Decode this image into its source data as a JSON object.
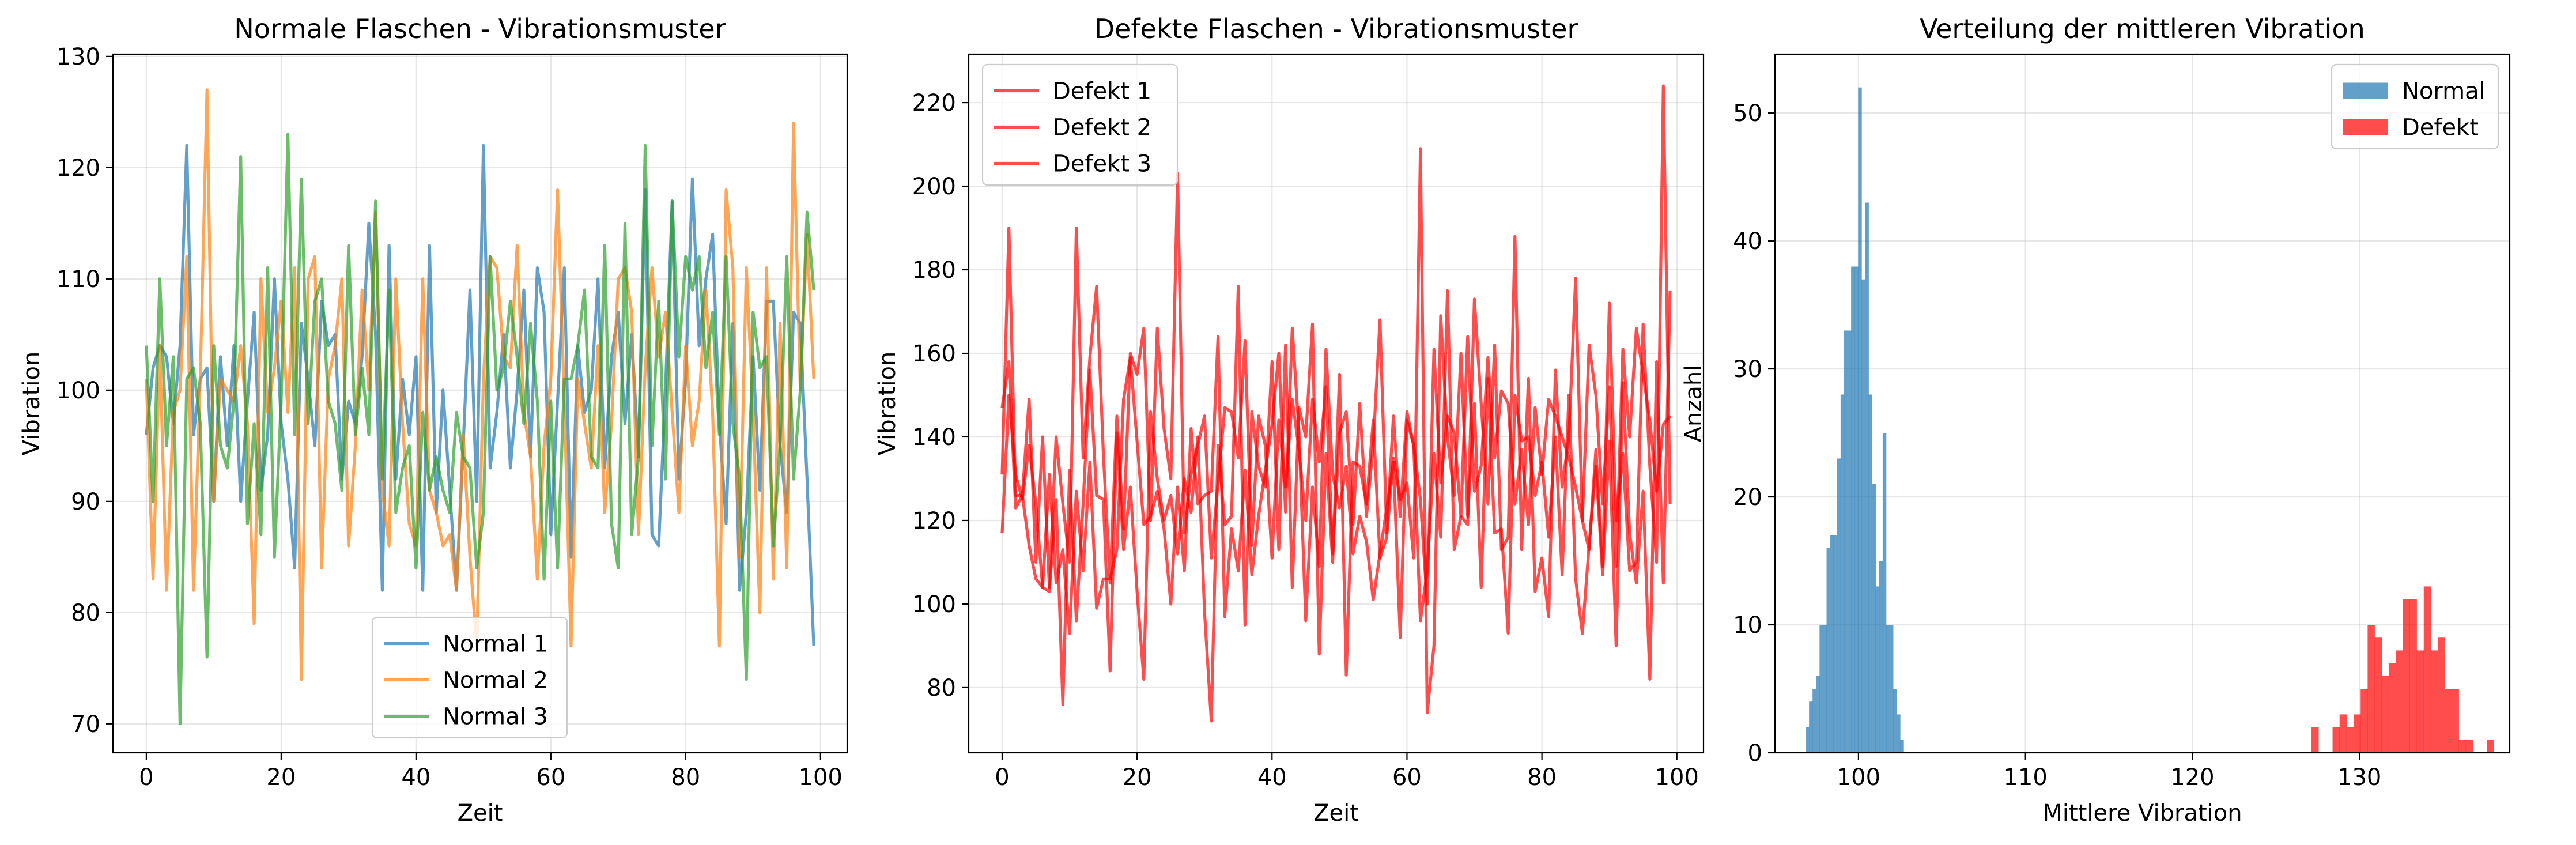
{
  "chart_data": [
    {
      "type": "line",
      "title": "Normale Flaschen - Vibrationsmuster",
      "xlabel": "Zeit",
      "ylabel": "Vibration",
      "xlim": [
        -4.95,
        103.95
      ],
      "ylim": [
        67.4,
        130.2
      ],
      "xticks": [
        0,
        20,
        40,
        60,
        80,
        100
      ],
      "yticks": [
        70,
        80,
        90,
        100,
        110,
        120,
        130
      ],
      "grid": true,
      "legend": "lower-center",
      "series": [
        {
          "name": "Normal 1",
          "color": "#1f77b4",
          "values": [
            96,
            102,
            104,
            103,
            97,
            104,
            122,
            96,
            101,
            102,
            90,
            103,
            95,
            104,
            90,
            99,
            107,
            91,
            96,
            110,
            97,
            92,
            84,
            106,
            101,
            95,
            108,
            104,
            105,
            92,
            99,
            97,
            103,
            115,
            105,
            82,
            113,
            92,
            101,
            96,
            103,
            82,
            113,
            89,
            100,
            91,
            82,
            95,
            109,
            90,
            122,
            93,
            98,
            105,
            93,
            100,
            109,
            94,
            111,
            107,
            87,
            99,
            111,
            85,
            104,
            98,
            100,
            110,
            93,
            103,
            107,
            97,
            105,
            94,
            118,
            87,
            86,
            100,
            117,
            92,
            101,
            119,
            104,
            110,
            114,
            97,
            88,
            106,
            82,
            89,
            103,
            91,
            108,
            108,
            95,
            89,
            107,
            106,
            92,
            77
          ]
        },
        {
          "name": "Normal 2",
          "color": "#ff7f0e",
          "values": [
            101,
            83,
            104,
            82,
            98,
            100,
            112,
            82,
            101,
            127,
            90,
            101,
            100,
            99,
            104,
            97,
            79,
            110,
            98,
            102,
            108,
            98,
            111,
            74,
            110,
            112,
            84,
            101,
            104,
            110,
            86,
            95,
            109,
            100,
            116,
            91,
            86,
            110,
            97,
            88,
            86,
            110,
            91,
            89,
            86,
            87,
            82,
            96,
            85,
            77,
            101,
            112,
            111,
            103,
            102,
            113,
            98,
            94,
            83,
            95,
            101,
            118,
            99,
            77,
            101,
            97,
            93,
            104,
            89,
            97,
            110,
            111,
            107,
            87,
            102,
            111,
            103,
            107,
            98,
            89,
            104,
            95,
            99,
            109,
            98,
            77,
            118,
            111,
            85,
            111,
            98,
            80,
            111,
            83,
            106,
            84,
            124,
            100,
            114,
            101
          ]
        },
        {
          "name": "Normal 3",
          "color": "#2ca02c",
          "values": [
            104,
            90,
            110,
            95,
            103,
            70,
            101,
            102,
            97,
            76,
            104,
            95,
            93,
            99,
            121,
            88,
            97,
            87,
            111,
            85,
            99,
            123,
            96,
            119,
            97,
            108,
            110,
            99,
            97,
            91,
            113,
            96,
            102,
            96,
            117,
            92,
            109,
            89,
            93,
            95,
            84,
            98,
            91,
            94,
            91,
            89,
            98,
            94,
            93,
            84,
            89,
            112,
            100,
            102,
            108,
            103,
            97,
            106,
            99,
            83,
            99,
            84,
            101,
            101,
            104,
            109,
            94,
            93,
            113,
            88,
            84,
            115,
            87,
            94,
            122,
            95,
            108,
            92,
            117,
            103,
            112,
            109,
            112,
            102,
            107,
            96,
            112,
            97,
            92,
            74,
            107,
            102,
            103,
            86,
            95,
            112,
            92,
            100,
            116,
            109
          ]
        }
      ]
    },
    {
      "type": "line",
      "title": "Defekte Flaschen - Vibrationsmuster",
      "xlabel": "Zeit",
      "ylabel": "Vibration",
      "xlim": [
        -4.95,
        103.95
      ],
      "ylim": [
        64.4,
        231.6
      ],
      "xticks": [
        0,
        20,
        40,
        60,
        80,
        100
      ],
      "yticks": [
        80,
        100,
        120,
        140,
        160,
        180,
        200,
        220
      ],
      "grid": true,
      "legend": "upper-left",
      "series": [
        {
          "name": "Defekt 1",
          "color": "#ff0000",
          "values": [
            147,
            158,
            123,
            126,
            149,
            110,
            140,
            104,
            140,
            124,
            110,
            190,
            135,
            159,
            176,
            136,
            105,
            145,
            118,
            160,
            155,
            166,
            120,
            166,
            142,
            130,
            203,
            117,
            131,
            138,
            145,
            111,
            129,
            147,
            146,
            135,
            163,
            114,
            145,
            138,
            111,
            144,
            128,
            149,
            137,
            120,
            149,
            134,
            152,
            112,
            141,
            146,
            119,
            148,
            121,
            138,
            168,
            117,
            145,
            121,
            146,
            138,
            125,
            100,
            161,
            129,
            145,
            141,
            121,
            164,
            127,
            133,
            159,
            135,
            151,
            148,
            124,
            137,
            119,
            147,
            131,
            149,
            145,
            140,
            135,
            128,
            120,
            162,
            150,
            124,
            152,
            109,
            161,
            140,
            166,
            155,
            144,
            127,
            143,
            145
          ]
        },
        {
          "name": "Defekt 2",
          "color": "#ff0000",
          "values": [
            117,
            150,
            131,
            125,
            138,
            124,
            104,
            103,
            125,
            76,
            132,
            96,
            124,
            156,
            126,
            125,
            84,
            141,
            113,
            128,
            103,
            82,
            146,
            130,
            120,
            126,
            112,
            130,
            122,
            140,
            98,
            72,
            138,
            119,
            121,
            176,
            95,
            146,
            133,
            128,
            158,
            113,
            162,
            104,
            147,
            140,
            167,
            88,
            136,
            110,
            155,
            83,
            134,
            133,
            124,
            144,
            111,
            116,
            135,
            125,
            129,
            111,
            209,
            74,
            90,
            169,
            140,
            126,
            160,
            121,
            148,
            104,
            154,
            117,
            118,
            93,
            150,
            139,
            140,
            126,
            134,
            116,
            140,
            107,
            150,
            106,
            93,
            114,
            133,
            107,
            139,
            90,
            153,
            117,
            105,
            127,
            82,
            158,
            105,
            175
          ]
        },
        {
          "name": "Defekt 3",
          "color": "#ff0000",
          "values": [
            131,
            190,
            126,
            126,
            114,
            106,
            104,
            131,
            105,
            113,
            93,
            127,
            108,
            134,
            99,
            106,
            106,
            113,
            149,
            159,
            139,
            119,
            121,
            127,
            118,
            100,
            128,
            108,
            142,
            124,
            126,
            127,
            164,
            97,
            118,
            108,
            132,
            107,
            121,
            132,
            143,
            160,
            122,
            166,
            141,
            96,
            128,
            109,
            161,
            131,
            123,
            133,
            112,
            121,
            115,
            101,
            112,
            123,
            134,
            92,
            144,
            138,
            96,
            108,
            136,
            116,
            175,
            113,
            121,
            119,
            173,
            148,
            124,
            162,
            113,
            116,
            188,
            113,
            154,
            103,
            111,
            97,
            156,
            128,
            140,
            178,
            120,
            113,
            137,
            109,
            172,
            120,
            136,
            108,
            110,
            167,
            133,
            110,
            224,
            124
          ]
        }
      ]
    },
    {
      "type": "histogram",
      "title": "Verteilung der mittleren Vibration",
      "xlabel": "Mittlere Vibration",
      "ylabel": "Anzahl",
      "xlim": [
        95.0,
        139.0
      ],
      "ylim": [
        0,
        54.6
      ],
      "xticks": [
        100,
        110,
        120,
        130
      ],
      "yticks": [
        0,
        10,
        20,
        30,
        40,
        50
      ],
      "grid": true,
      "legend": "upper-right",
      "series": [
        {
          "name": "Normal",
          "color": "#1f77b4",
          "bins": [
            96.83,
            97.04,
            97.25,
            97.46,
            97.67,
            97.88,
            98.09,
            98.3,
            98.51,
            98.72,
            98.93,
            99.14,
            99.35,
            99.56,
            99.77,
            99.98,
            100.19,
            100.4,
            100.61,
            100.82,
            101.03,
            101.24,
            101.45,
            101.66,
            101.87,
            102.08,
            102.29,
            102.5,
            102.71,
            102.92,
            103.13
          ],
          "counts": [
            2,
            4,
            5,
            6,
            10,
            10,
            16,
            17,
            17,
            23,
            28,
            33,
            33,
            38,
            38,
            52,
            37,
            43,
            28,
            21,
            13,
            15,
            25,
            10,
            10,
            5,
            3,
            1,
            0,
            0
          ]
        },
        {
          "name": "Defekt",
          "color": "#ff0000",
          "bins": [
            127.13,
            127.55,
            127.97,
            128.39,
            128.81,
            129.23,
            129.65,
            130.07,
            130.49,
            130.91,
            131.33,
            131.75,
            132.17,
            132.59,
            133.01,
            133.43,
            133.85,
            134.27,
            134.69,
            135.11,
            135.53,
            135.95,
            136.37,
            136.79,
            137.21,
            137.63,
            138.05
          ],
          "counts": [
            2,
            0,
            0,
            2,
            3,
            2,
            3,
            5,
            10,
            9,
            6,
            7,
            8,
            12,
            12,
            8,
            13,
            8,
            9,
            5,
            5,
            1,
            1,
            0,
            0,
            1
          ]
        }
      ]
    }
  ]
}
